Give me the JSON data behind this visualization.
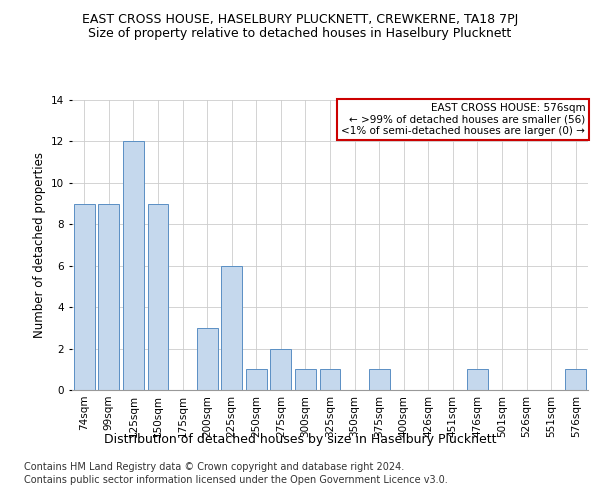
{
  "title": "EAST CROSS HOUSE, HASELBURY PLUCKNETT, CREWKERNE, TA18 7PJ",
  "subtitle": "Size of property relative to detached houses in Haselbury Plucknett",
  "xlabel": "Distribution of detached houses by size in Haselbury Plucknett",
  "ylabel": "Number of detached properties",
  "categories": [
    "74sqm",
    "99sqm",
    "125sqm",
    "150sqm",
    "175sqm",
    "200sqm",
    "225sqm",
    "250sqm",
    "275sqm",
    "300sqm",
    "325sqm",
    "350sqm",
    "375sqm",
    "400sqm",
    "426sqm",
    "451sqm",
    "476sqm",
    "501sqm",
    "526sqm",
    "551sqm",
    "576sqm"
  ],
  "values": [
    9,
    9,
    12,
    9,
    0,
    3,
    6,
    1,
    2,
    1,
    1,
    0,
    1,
    0,
    0,
    0,
    1,
    0,
    0,
    0,
    1
  ],
  "bar_color": "#c5d8ed",
  "bar_edge_color": "#5a8fc4",
  "annotation_title": "EAST CROSS HOUSE: 576sqm",
  "annotation_line1": "← >99% of detached houses are smaller (56)",
  "annotation_line2": "<1% of semi-detached houses are larger (0) →",
  "annotation_box_color": "#ffffff",
  "annotation_box_edge_color": "#cc0000",
  "ylim": [
    0,
    14
  ],
  "yticks": [
    0,
    2,
    4,
    6,
    8,
    10,
    12,
    14
  ],
  "footer1": "Contains HM Land Registry data © Crown copyright and database right 2024.",
  "footer2": "Contains public sector information licensed under the Open Government Licence v3.0.",
  "title_fontsize": 9,
  "subtitle_fontsize": 9,
  "xlabel_fontsize": 9,
  "ylabel_fontsize": 8.5,
  "tick_fontsize": 7.5,
  "annotation_fontsize": 7.5,
  "footer_fontsize": 7,
  "bg_color": "#ffffff",
  "grid_color": "#cccccc"
}
